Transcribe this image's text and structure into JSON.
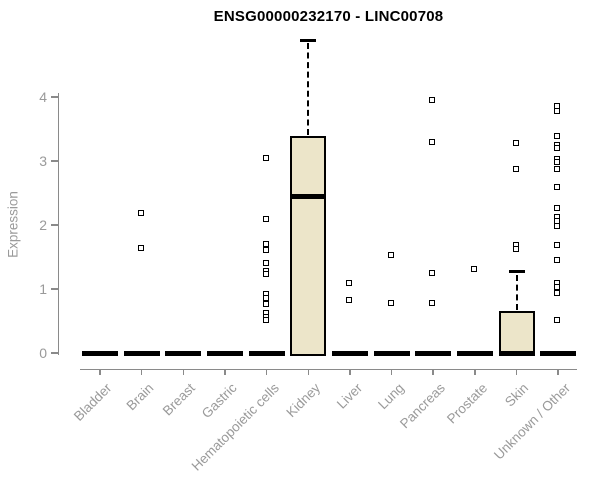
{
  "page": {
    "background": "#ffffff"
  },
  "chart_data": {
    "type": "boxplot",
    "title": "ENSG00000232170 - LINC00708",
    "ylabel": "Expression",
    "xlabel": "",
    "ylim": [
      0,
      4.9
    ],
    "yticks": [
      0,
      1,
      2,
      3,
      4
    ],
    "grid": false,
    "legend": null,
    "colors": {
      "box_fill": "#ece5c9",
      "box_border": "#000000",
      "axis": "#8a8a8a",
      "tick_label": "#9a9a9a",
      "title": "#000000"
    },
    "categories": [
      "Bladder",
      "Brain",
      "Breast",
      "Gastric",
      "Hematopoietic cells",
      "Kidney",
      "Liver",
      "Lung",
      "Pancreas",
      "Prostate",
      "Skin",
      "Unknown / Other"
    ],
    "boxes": [
      {
        "category": "Bladder",
        "q1": 0,
        "median": 0,
        "q3": 0,
        "whisker_high": 0,
        "outliers": []
      },
      {
        "category": "Brain",
        "q1": 0,
        "median": 0,
        "q3": 0,
        "whisker_high": 0,
        "outliers": [
          2.19,
          1.64
        ]
      },
      {
        "category": "Breast",
        "q1": 0,
        "median": 0,
        "q3": 0,
        "whisker_high": 0,
        "outliers": []
      },
      {
        "category": "Gastric",
        "q1": 0,
        "median": 0,
        "q3": 0,
        "whisker_high": 0,
        "outliers": []
      },
      {
        "category": "Hematopoietic cells",
        "q1": 0,
        "median": 0,
        "q3": 0,
        "whisker_high": 0,
        "outliers": [
          3.05,
          2.1,
          1.7,
          1.61,
          1.4,
          1.28,
          1.24,
          0.92,
          0.86,
          0.77,
          0.63,
          0.57,
          0.51
        ]
      },
      {
        "category": "Kidney",
        "q1": 0,
        "median": 2.44,
        "q3": 3.38,
        "whisker_high": 4.89,
        "outliers": []
      },
      {
        "category": "Liver",
        "q1": 0,
        "median": 0,
        "q3": 0,
        "whisker_high": 0,
        "outliers": [
          1.09,
          0.83
        ]
      },
      {
        "category": "Lung",
        "q1": 0,
        "median": 0,
        "q3": 0,
        "whisker_high": 0,
        "outliers": [
          1.53,
          0.78
        ]
      },
      {
        "category": "Pancreas",
        "q1": 0,
        "median": 0,
        "q3": 0,
        "whisker_high": 0,
        "outliers": [
          3.95,
          3.3,
          1.25,
          0.78
        ]
      },
      {
        "category": "Prostate",
        "q1": 0,
        "median": 0,
        "q3": 0,
        "whisker_high": 0,
        "outliers": [
          1.31
        ]
      },
      {
        "category": "Skin",
        "q1": 0,
        "median": 0,
        "q3": 0.64,
        "whisker_high": 1.27,
        "outliers": [
          3.28,
          2.88,
          1.68,
          1.62
        ]
      },
      {
        "category": "Unknown / Other",
        "q1": 0,
        "median": 0,
        "q3": 0,
        "whisker_high": 0,
        "outliers": [
          3.86,
          3.78,
          3.39,
          3.25,
          3.2,
          3.03,
          2.99,
          2.88,
          2.59,
          2.27,
          2.13,
          2.07,
          1.98,
          1.69,
          1.45,
          1.09,
          1.03,
          0.94,
          0.52
        ]
      }
    ]
  }
}
